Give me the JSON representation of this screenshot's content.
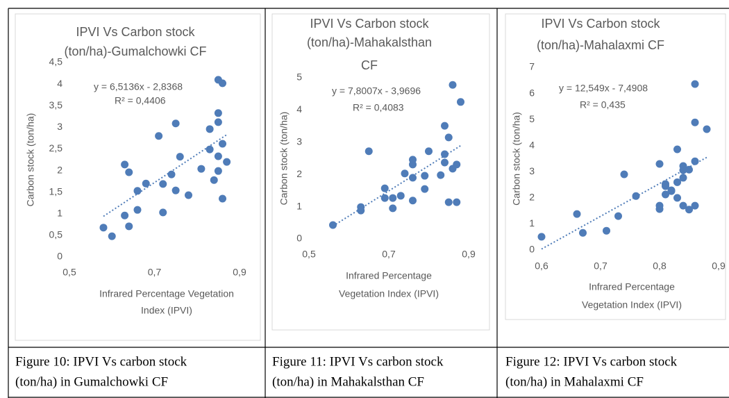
{
  "chart_data": [
    {
      "type": "scatter",
      "title": [
        "IPVI Vs Carbon stock",
        "(ton/ha)-Gumalchowki CF"
      ],
      "ylabel": "Carbon stock (ton/ha)",
      "xlabel": [
        "Infrared Percentage Vegetation",
        "Index (IPVI)"
      ],
      "color": "#4f7cb8",
      "x": [
        0.58,
        0.6,
        0.63,
        0.64,
        0.63,
        0.64,
        0.66,
        0.66,
        0.68,
        0.71,
        0.72,
        0.72,
        0.75,
        0.74,
        0.75,
        0.76,
        0.78,
        0.81,
        0.83,
        0.83,
        0.85,
        0.85,
        0.85,
        0.84,
        0.85,
        0.86,
        0.86,
        0.85,
        0.87,
        0.86
      ],
      "values": [
        0.68,
        0.48,
        2.14,
        1.96,
        0.96,
        0.71,
        1.53,
        1.09,
        1.7,
        2.8,
        1.69,
        1.03,
        3.09,
        1.91,
        1.54,
        2.32,
        1.43,
        2.04,
        2.96,
        2.49,
        3.33,
        3.12,
        2.33,
        1.78,
        4.1,
        4.02,
        2.62,
        1.99,
        2.2,
        1.35
      ],
      "trendline": {
        "slope": 6.5136,
        "intercept": -2.8368
      },
      "equation": "y = 6,5136x - 2,8368",
      "r2": "R² = 0,4406",
      "xlim": [
        0.5,
        0.9
      ],
      "ylim": [
        0,
        4.5
      ],
      "xticks": [
        {
          "value": 0.5,
          "label": "0,5"
        },
        {
          "value": 0.7,
          "label": "0,7"
        },
        {
          "value": 0.9,
          "label": "0,9"
        }
      ],
      "yticks": [
        0,
        {
          "value": 0.5,
          "label": "0,5"
        },
        1,
        {
          "value": 1.5,
          "label": "1,5"
        },
        2,
        {
          "value": 2.5,
          "label": "2,5"
        },
        3,
        {
          "value": 3.5,
          "label": "3,5"
        },
        4,
        {
          "value": 4.5,
          "label": "4,5"
        }
      ]
    },
    {
      "type": "scatter",
      "title": [
        "IPVI Vs Carbon stock",
        "(ton/ha)-Mahakalsthan",
        "CF"
      ],
      "ylabel": "Carbon stock (ton/ha)",
      "xlabel": [
        "Infrared Percentage",
        "Vegetation Index (IPVI)"
      ],
      "color": "#4f7cb8",
      "x": [
        0.56,
        0.63,
        0.63,
        0.65,
        0.69,
        0.69,
        0.71,
        0.71,
        0.73,
        0.74,
        0.76,
        0.76,
        0.76,
        0.76,
        0.79,
        0.79,
        0.8,
        0.83,
        0.84,
        0.84,
        0.84,
        0.85,
        0.86,
        0.86,
        0.85,
        0.87,
        0.88,
        0.87
      ],
      "values": [
        0.43,
        0.88,
        0.99,
        2.72,
        1.57,
        1.27,
        0.95,
        1.27,
        1.34,
        2.03,
        2.31,
        2.46,
        1.9,
        1.19,
        1.55,
        1.96,
        2.72,
        1.98,
        3.51,
        2.63,
        2.37,
        3.15,
        2.18,
        4.78,
        1.14,
        1.14,
        4.25,
        2.31
      ],
      "trendline": {
        "slope": 7.8007,
        "intercept": -3.9696
      },
      "equation": "y = 7,8007x - 3,9696",
      "r2": "R² = 0,4083",
      "xlim": [
        0.5,
        0.9
      ],
      "ylim": [
        0,
        5
      ],
      "xticks": [
        {
          "value": 0.5,
          "label": "0,5"
        },
        {
          "value": 0.7,
          "label": "0,7"
        },
        {
          "value": 0.9,
          "label": "0,9"
        }
      ],
      "yticks": [
        0,
        1,
        2,
        3,
        4,
        5
      ]
    },
    {
      "type": "scatter",
      "title": [
        "IPVI Vs Carbon stock",
        "(ton/ha)-Mahalaxmi CF"
      ],
      "ylabel": "Carbon stock (ton/ha)",
      "xlabel": [
        "Infrared Percentage",
        "Vegetation Index (IPVI)"
      ],
      "color": "#4f7cb8",
      "x": [
        0.6,
        0.66,
        0.67,
        0.71,
        0.73,
        0.74,
        0.76,
        0.8,
        0.8,
        0.8,
        0.81,
        0.81,
        0.81,
        0.82,
        0.82,
        0.83,
        0.83,
        0.83,
        0.84,
        0.84,
        0.84,
        0.84,
        0.85,
        0.85,
        0.86,
        0.86,
        0.86,
        0.86,
        0.88
      ],
      "values": [
        0.51,
        1.38,
        0.66,
        0.74,
        1.3,
        2.9,
        2.07,
        3.3,
        1.57,
        1.7,
        2.13,
        2.45,
        2.53,
        2.26,
        2.29,
        2.0,
        3.86,
        2.6,
        2.77,
        1.7,
        3.22,
        3.06,
        1.55,
        3.08,
        1.7,
        3.4,
        4.89,
        6.36,
        4.63
      ],
      "trendline": {
        "slope": 12.549,
        "intercept": -7.4908
      },
      "equation": "y = 12,549x - 7,4908",
      "r2": "R² = 0,435",
      "xlim": [
        0.6,
        0.9
      ],
      "ylim": [
        0,
        7
      ],
      "xticks": [
        {
          "value": 0.6,
          "label": "0,6"
        },
        {
          "value": 0.7,
          "label": "0,7"
        },
        {
          "value": 0.8,
          "label": "0,8"
        },
        {
          "value": 0.9,
          "label": "0,9"
        }
      ],
      "yticks": [
        0,
        1,
        2,
        3,
        4,
        5,
        6,
        7
      ]
    }
  ],
  "captions": [
    [
      "Figure 10: IPVI Vs carbon stock",
      "(ton/ha) in Gumalchowki CF"
    ],
    [
      "Figure 11: IPVI Vs carbon stock",
      "(ton/ha) in Mahakalsthan CF"
    ],
    [
      "Figure 12: IPVI Vs carbon stock",
      "(ton/ha) in Mahalaxmi CF"
    ]
  ]
}
